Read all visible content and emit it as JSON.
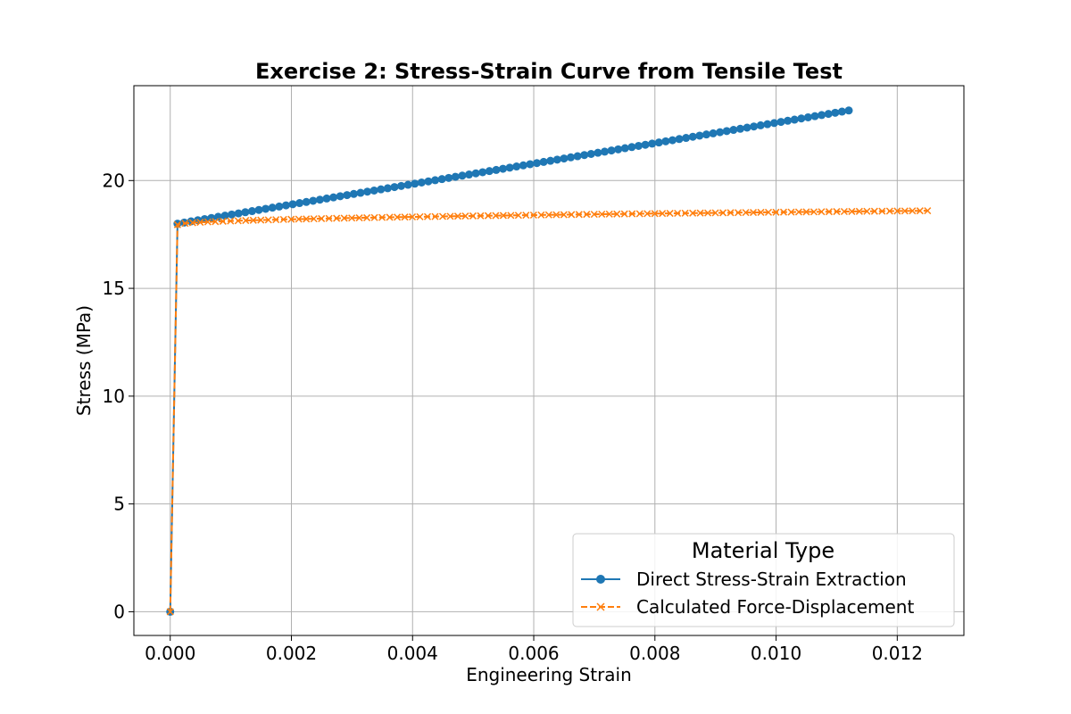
{
  "chart_data": {
    "type": "line",
    "title": "Exercise 2: Stress-Strain Curve from Tensile Test",
    "xlabel": "Engineering Strain",
    "ylabel": "Stress (MPa)",
    "xlim": [
      -0.0006,
      0.0131
    ],
    "ylim": [
      -1.1,
      24.4
    ],
    "xticks": [
      0.0,
      0.002,
      0.004,
      0.006,
      0.008,
      0.01,
      0.012
    ],
    "xtick_labels": [
      "0.000",
      "0.002",
      "0.004",
      "0.006",
      "0.008",
      "0.010",
      "0.012"
    ],
    "yticks": [
      0,
      5,
      10,
      15,
      20
    ],
    "ytick_labels": [
      "0",
      "5",
      "10",
      "15",
      "20"
    ],
    "grid": true,
    "legend": {
      "title": "Material Type",
      "placement": "lower-right"
    },
    "series": [
      {
        "name": "Direct Stress-Strain Extraction",
        "color": "#1f77b4",
        "marker": "circle",
        "linestyle": "solid",
        "origin": [
          0.0,
          0.0
        ],
        "x_start": 0.00012,
        "x_end": 0.0112,
        "y_start": 18.0,
        "y_end": 23.25,
        "n_points": 100,
        "curve": "linear"
      },
      {
        "name": "Calculated Force-Displacement",
        "color": "#ff7f0e",
        "marker": "x",
        "linestyle": "dashed",
        "origin": [
          0.0,
          0.0
        ],
        "x_start": 0.00012,
        "x_end": 0.0125,
        "y_start": 17.95,
        "y_end": 18.6,
        "n_points": 100,
        "curve": "concave"
      }
    ]
  }
}
